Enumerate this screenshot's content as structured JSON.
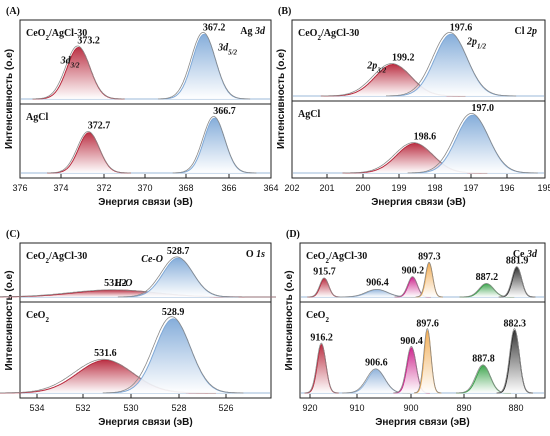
{
  "chart_data": [
    {
      "type": "area",
      "panel_label": "(A)",
      "title": "Ag 3d",
      "xlabel": "Энергия связи (эВ)",
      "ylabel": "Интенсивность (o.e)",
      "xlim": [
        376,
        364
      ],
      "x_reversed": true,
      "x_ticks": [
        "376",
        "374",
        "372",
        "370",
        "368",
        "366",
        "364"
      ],
      "annotations": [
        "3d3/2",
        "3d5/2"
      ],
      "subplots": [
        {
          "sample": "CeO2/AgCl-30",
          "peaks": [
            {
              "name": "3d3/2",
              "center": 373.2,
              "height": 0.78,
              "width": 0.55,
              "color": "#b8283c",
              "label": "373.2"
            },
            {
              "name": "3d5/2",
              "center": 367.2,
              "height": 0.98,
              "width": 0.55,
              "color": "#7fa9d8",
              "label": "367.2"
            }
          ]
        },
        {
          "sample": "AgCl",
          "peaks": [
            {
              "name": "3d3/2",
              "center": 372.7,
              "height": 0.72,
              "width": 0.5,
              "color": "#b8283c",
              "label": "372.7"
            },
            {
              "name": "3d5/2",
              "center": 366.7,
              "height": 0.98,
              "width": 0.5,
              "color": "#7fa9d8",
              "label": "366.7"
            }
          ]
        }
      ]
    },
    {
      "type": "area",
      "panel_label": "(B)",
      "title": "Cl 2p",
      "xlabel": "Энергия связи (эВ)",
      "ylabel": "Интенсивность (o.e)",
      "xlim": [
        202,
        195
      ],
      "x_reversed": true,
      "x_ticks": [
        "202",
        "201",
        "200",
        "199",
        "198",
        "197",
        "196",
        "195"
      ],
      "annotations": [
        "2p3/2",
        "2p1/2"
      ],
      "subplots": [
        {
          "sample": "CeO2/AgCl-30",
          "peaks": [
            {
              "name": "2p3/2",
              "center": 199.2,
              "height": 0.5,
              "width": 0.5,
              "color": "#b8283c",
              "label": "199.2"
            },
            {
              "name": "2p1/2",
              "center": 197.6,
              "height": 0.98,
              "width": 0.45,
              "color": "#7fa9d8",
              "label": "197.6"
            }
          ]
        },
        {
          "sample": "AgCl",
          "peaks": [
            {
              "name": "2p3/2",
              "center": 198.6,
              "height": 0.5,
              "width": 0.5,
              "color": "#b8283c",
              "label": "198.6"
            },
            {
              "name": "2p1/2",
              "center": 197.0,
              "height": 0.98,
              "width": 0.45,
              "color": "#7fa9d8",
              "label": "197.0"
            }
          ]
        }
      ]
    },
    {
      "type": "area",
      "panel_label": "(C)",
      "title": "O 1s",
      "xlabel": "Энергия связи (эВ)",
      "ylabel": "Интенсивность (o.e)",
      "xlim": [
        535,
        525
      ],
      "x_reversed": true,
      "x_ticks": [
        "534",
        "532",
        "530",
        "528",
        "526"
      ],
      "annotations": [
        "Ce-O",
        "H-O"
      ],
      "subplots": [
        {
          "sample": "CeO2/AgCl-30",
          "peaks": [
            {
              "name": "H-O",
              "center": 531.2,
              "height": 0.17,
              "width": 1.6,
              "color": "#b8283c",
              "label": "531.2"
            },
            {
              "name": "Ce-O",
              "center": 528.7,
              "height": 0.95,
              "width": 0.6,
              "color": "#7fa9d8",
              "label": "528.7"
            }
          ]
        },
        {
          "sample": "CeO2",
          "peaks": [
            {
              "name": "H-O",
              "center": 531.6,
              "height": 0.42,
              "width": 1.1,
              "color": "#b8283c",
              "label": "531.6"
            },
            {
              "name": "Ce-O",
              "center": 528.9,
              "height": 0.95,
              "width": 0.7,
              "color": "#7fa9d8",
              "label": "528.9"
            }
          ]
        }
      ]
    },
    {
      "type": "area",
      "panel_label": "(D)",
      "title": "Ce 3d",
      "xlabel": "Энергия связи (эВ)",
      "ylabel": "Интенсивность (o.e)",
      "xlim": [
        920,
        877
      ],
      "x_reversed": true,
      "x_ticks": [
        "920",
        "910",
        "900",
        "890",
        "880"
      ],
      "subplots": [
        {
          "sample": "CeO2/AgCl-30",
          "peaks": [
            {
              "center": 915.7,
              "height": 0.45,
              "width": 0.75,
              "color": "#b8283c",
              "label": "915.7"
            },
            {
              "center": 906.4,
              "height": 0.18,
              "width": 1.8,
              "color": "#8fb2da",
              "label": "906.4"
            },
            {
              "center": 900.2,
              "height": 0.48,
              "width": 0.8,
              "color": "#cc1f8a",
              "label": "900.2"
            },
            {
              "center": 897.3,
              "height": 0.82,
              "width": 0.6,
              "color": "#f0ab52",
              "label": "897.3"
            },
            {
              "center": 887.2,
              "height": 0.32,
              "width": 1.2,
              "color": "#3aa34a",
              "label": "887.2"
            },
            {
              "center": 881.9,
              "height": 0.72,
              "width": 0.8,
              "color": "#2e2e2e",
              "label": "881.9"
            }
          ]
        },
        {
          "sample": "CeO2",
          "peaks": [
            {
              "center": 916.2,
              "height": 0.62,
              "width": 0.75,
              "color": "#b8283c",
              "label": "916.2"
            },
            {
              "center": 906.6,
              "height": 0.3,
              "width": 1.5,
              "color": "#8fb2da",
              "label": "906.6"
            },
            {
              "center": 900.4,
              "height": 0.58,
              "width": 0.8,
              "color": "#cc1f8a",
              "label": "900.4"
            },
            {
              "center": 897.6,
              "height": 0.8,
              "width": 0.6,
              "color": "#f0ab52",
              "label": "897.6"
            },
            {
              "center": 887.8,
              "height": 0.35,
              "width": 1.2,
              "color": "#3aa34a",
              "label": "887.8"
            },
            {
              "center": 882.3,
              "height": 0.8,
              "width": 0.8,
              "color": "#2e2e2e",
              "label": "882.3"
            }
          ]
        }
      ]
    }
  ]
}
